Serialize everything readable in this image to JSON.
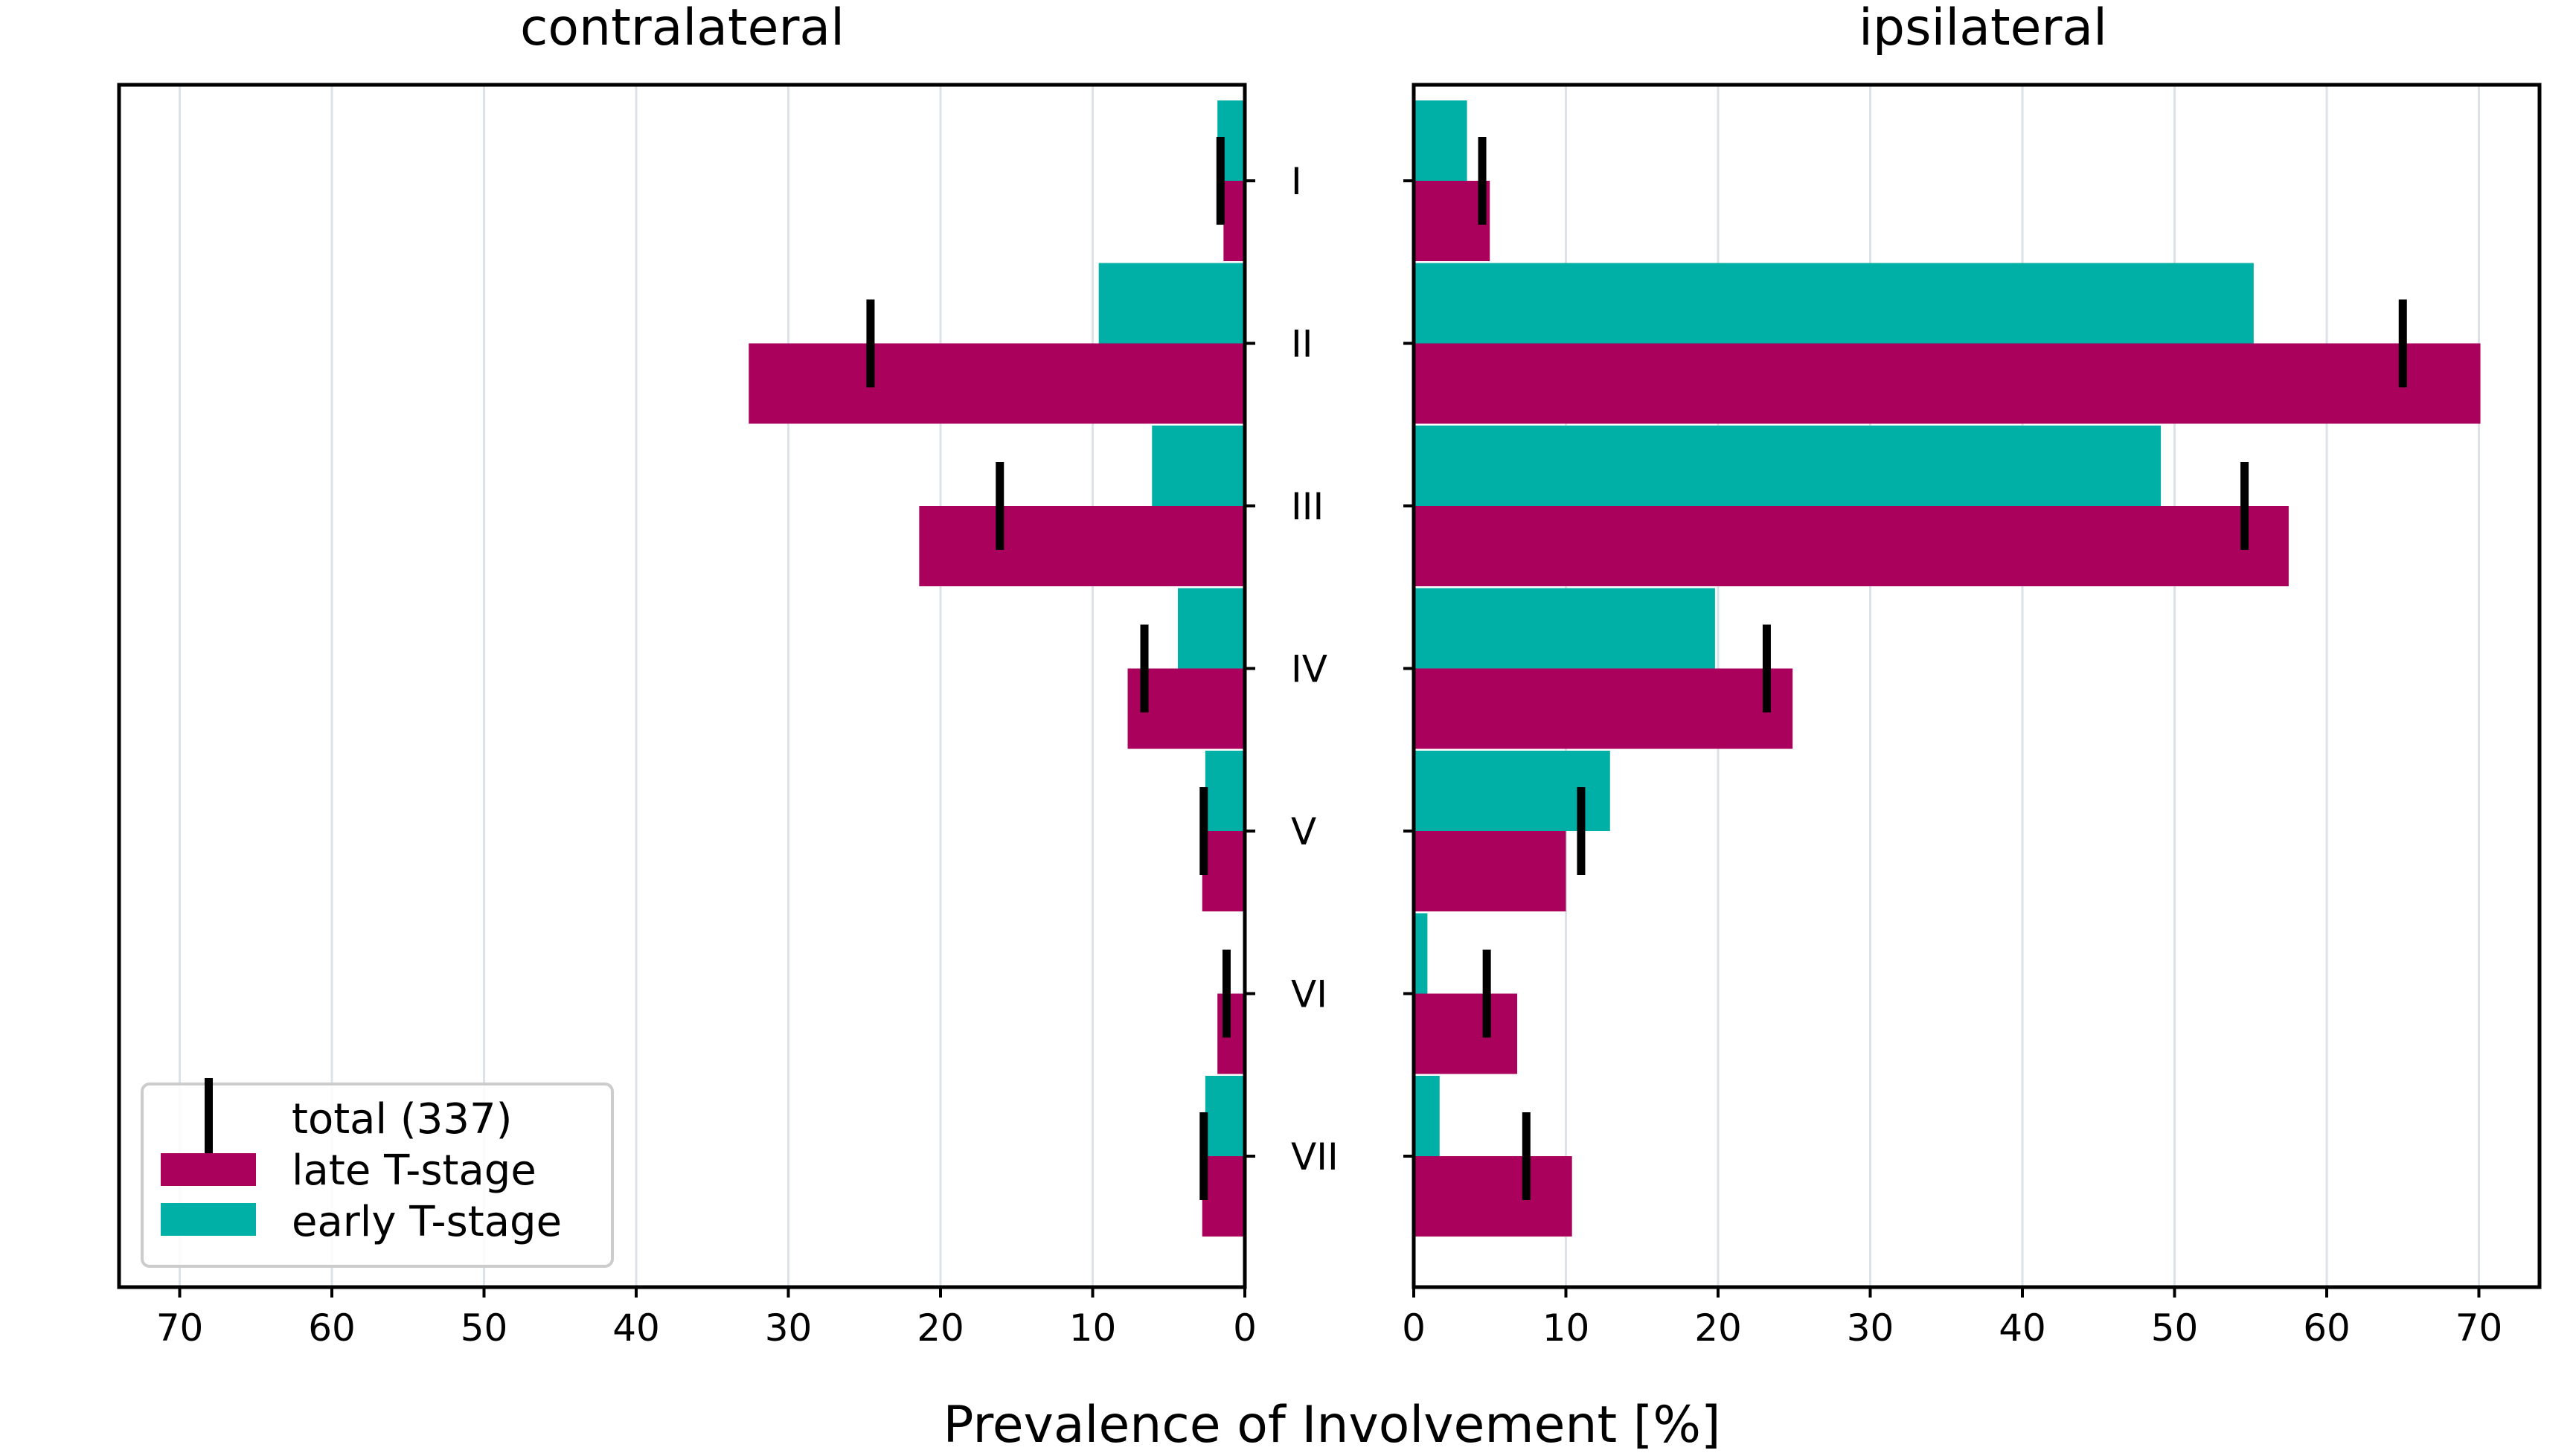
{
  "chart_data": {
    "type": "bar",
    "xlabel": "Prevalence of Involvement [%]",
    "xlim": [
      0,
      73.6
    ],
    "xticks": [
      0,
      10,
      20,
      30,
      40,
      50,
      60,
      70
    ],
    "grid": "vertical",
    "legend_position": "lower-left",
    "legend": {
      "total": "total (337)",
      "late": "late T-stage",
      "early": "early T-stage"
    },
    "levels": [
      "I",
      "II",
      "III",
      "IV",
      "V",
      "VI",
      "VII"
    ],
    "colors": {
      "late": "#a9015c",
      "early": "#00afa6",
      "total": "#000000",
      "grid": "#dbe3e8"
    },
    "panels": [
      {
        "title": "contralateral",
        "side": "contra",
        "late": [
          1.4,
          32.6,
          21.4,
          7.7,
          2.8,
          1.8,
          2.8
        ],
        "early": [
          1.8,
          9.6,
          6.1,
          4.4,
          2.6,
          0.0,
          2.6
        ],
        "total": [
          1.6,
          24.6,
          16.1,
          6.6,
          2.7,
          1.2,
          2.7
        ]
      },
      {
        "title": "ipsilateral",
        "side": "ipsi",
        "late": [
          5.0,
          70.1,
          57.5,
          24.9,
          10.0,
          6.8,
          10.4
        ],
        "early": [
          3.5,
          55.2,
          49.1,
          19.8,
          12.9,
          0.9,
          1.7
        ],
        "total": [
          4.5,
          65.0,
          54.6,
          23.2,
          11.0,
          4.8,
          7.4
        ]
      }
    ]
  }
}
